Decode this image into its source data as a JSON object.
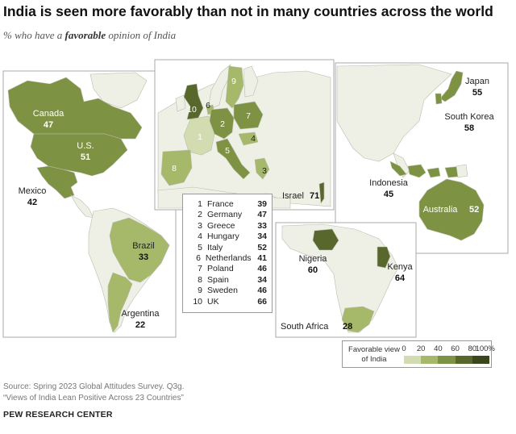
{
  "title": "India is seen more favorably than not in many countries across the world",
  "subtitle": {
    "before": "% who have a ",
    "emphasis": "favorable",
    "after": " opinion of India"
  },
  "countries": [
    {
      "name": "Canada",
      "value": "47"
    },
    {
      "name": "U.S.",
      "value": "51"
    },
    {
      "name": "Mexico",
      "value": "42"
    },
    {
      "name": "Brazil",
      "value": "33"
    },
    {
      "name": "Argentina",
      "value": "22"
    },
    {
      "name": "Japan",
      "value": "55"
    },
    {
      "name": "South Korea",
      "value": "58"
    },
    {
      "name": "Indonesia",
      "value": "45"
    },
    {
      "name": "Australia",
      "value": "52"
    },
    {
      "name": "Israel",
      "value": "71"
    },
    {
      "name": "Nigeria",
      "value": "60"
    },
    {
      "name": "Kenya",
      "value": "64"
    },
    {
      "name": "South Africa",
      "value": "28"
    }
  ],
  "europe_list": [
    {
      "index": "1",
      "name": "France",
      "value": "39"
    },
    {
      "index": "2",
      "name": "Germany",
      "value": "47"
    },
    {
      "index": "3",
      "name": "Greece",
      "value": "33"
    },
    {
      "index": "4",
      "name": "Hungary",
      "value": "34"
    },
    {
      "index": "5",
      "name": "Italy",
      "value": "52"
    },
    {
      "index": "6",
      "name": "Netherlands",
      "value": "41"
    },
    {
      "index": "7",
      "name": "Poland",
      "value": "46"
    },
    {
      "index": "8",
      "name": "Spain",
      "value": "34"
    },
    {
      "index": "9",
      "name": "Sweden",
      "value": "46"
    },
    {
      "index": "10",
      "name": "UK",
      "value": "66"
    }
  ],
  "scale": {
    "label_line1": "Favorable view",
    "label_line2": "of India",
    "ticks": [
      "0",
      "20",
      "40",
      "60",
      "80",
      "100%"
    ],
    "colors": [
      "#d3dbb0",
      "#a6b86a",
      "#7d9343",
      "#58682c",
      "#3a461c"
    ]
  },
  "colors": {
    "no_data": "#eef0e6",
    "border": "#b9bdad",
    "ocean": "#ffffff"
  },
  "source": {
    "line1": "Source: Spring 2023 Global Attitudes Survey. Q3g.",
    "line2": "“Views of India Lean Positive Across 23 Countries”"
  },
  "org": "PEW RESEARCH CENTER"
}
